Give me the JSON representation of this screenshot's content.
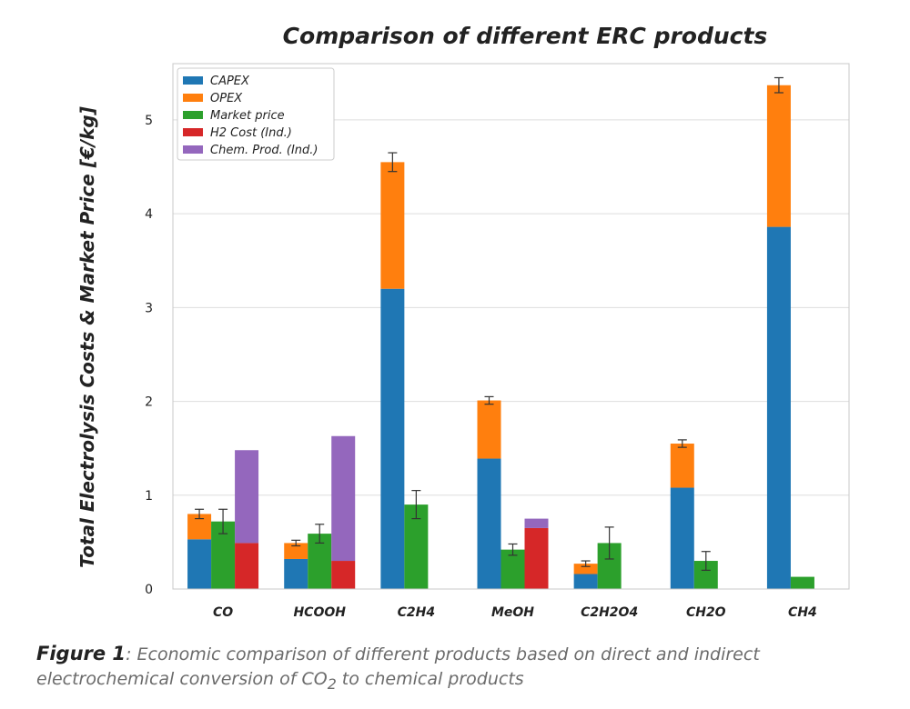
{
  "chart_data": {
    "type": "bar",
    "title": "Comparison of different ERC products",
    "xlabel": "",
    "ylabel": "Total Electrolysis Costs & Market Price [€/kg]",
    "ylim": [
      0,
      5.6
    ],
    "yticks": [
      0,
      1,
      2,
      3,
      4,
      5
    ],
    "grid": "horizontal",
    "legend_position": "top-left",
    "categories": [
      "CO",
      "HCOOH",
      "C2H4",
      "MeOH",
      "C2H2O4",
      "CH2O",
      "CH4"
    ],
    "colors": {
      "CAPEX": "#1f77b4",
      "OPEX": "#ff7f0e",
      "Market price": "#2ca02c",
      "H2 Cost (Ind.)": "#d62728",
      "Chem. Prod. (Ind.)": "#9467bd"
    },
    "legend": [
      "CAPEX",
      "OPEX",
      "Market price",
      "H2 Cost (Ind.)",
      "Chem. Prod. (Ind.)"
    ],
    "direct_cost": {
      "CAPEX": [
        0.53,
        0.32,
        3.2,
        1.39,
        0.16,
        1.08,
        3.86
      ],
      "OPEX": [
        0.27,
        0.17,
        1.35,
        0.62,
        0.11,
        0.47,
        1.51
      ],
      "total_error": [
        0.05,
        0.03,
        0.1,
        0.04,
        0.03,
        0.04,
        0.08
      ]
    },
    "market_price": {
      "values": [
        0.72,
        0.59,
        0.9,
        0.42,
        0.49,
        0.3,
        0.13
      ],
      "error": [
        0.13,
        0.1,
        0.15,
        0.06,
        0.17,
        0.1,
        0.0
      ]
    },
    "indirect_cost": {
      "H2 Cost (Ind.)": [
        0.49,
        0.3,
        null,
        0.65,
        null,
        null,
        null
      ],
      "Chem. Prod. (Ind.)": [
        0.99,
        1.33,
        null,
        0.1,
        null,
        null,
        null
      ]
    }
  },
  "caption": {
    "figure_label": "Figure 1",
    "text_before_sub": ": Economic comparison of different products based on direct and indirect electrochemical conversion of CO",
    "subscript": "2",
    "text_after_sub": " to chemical products"
  }
}
